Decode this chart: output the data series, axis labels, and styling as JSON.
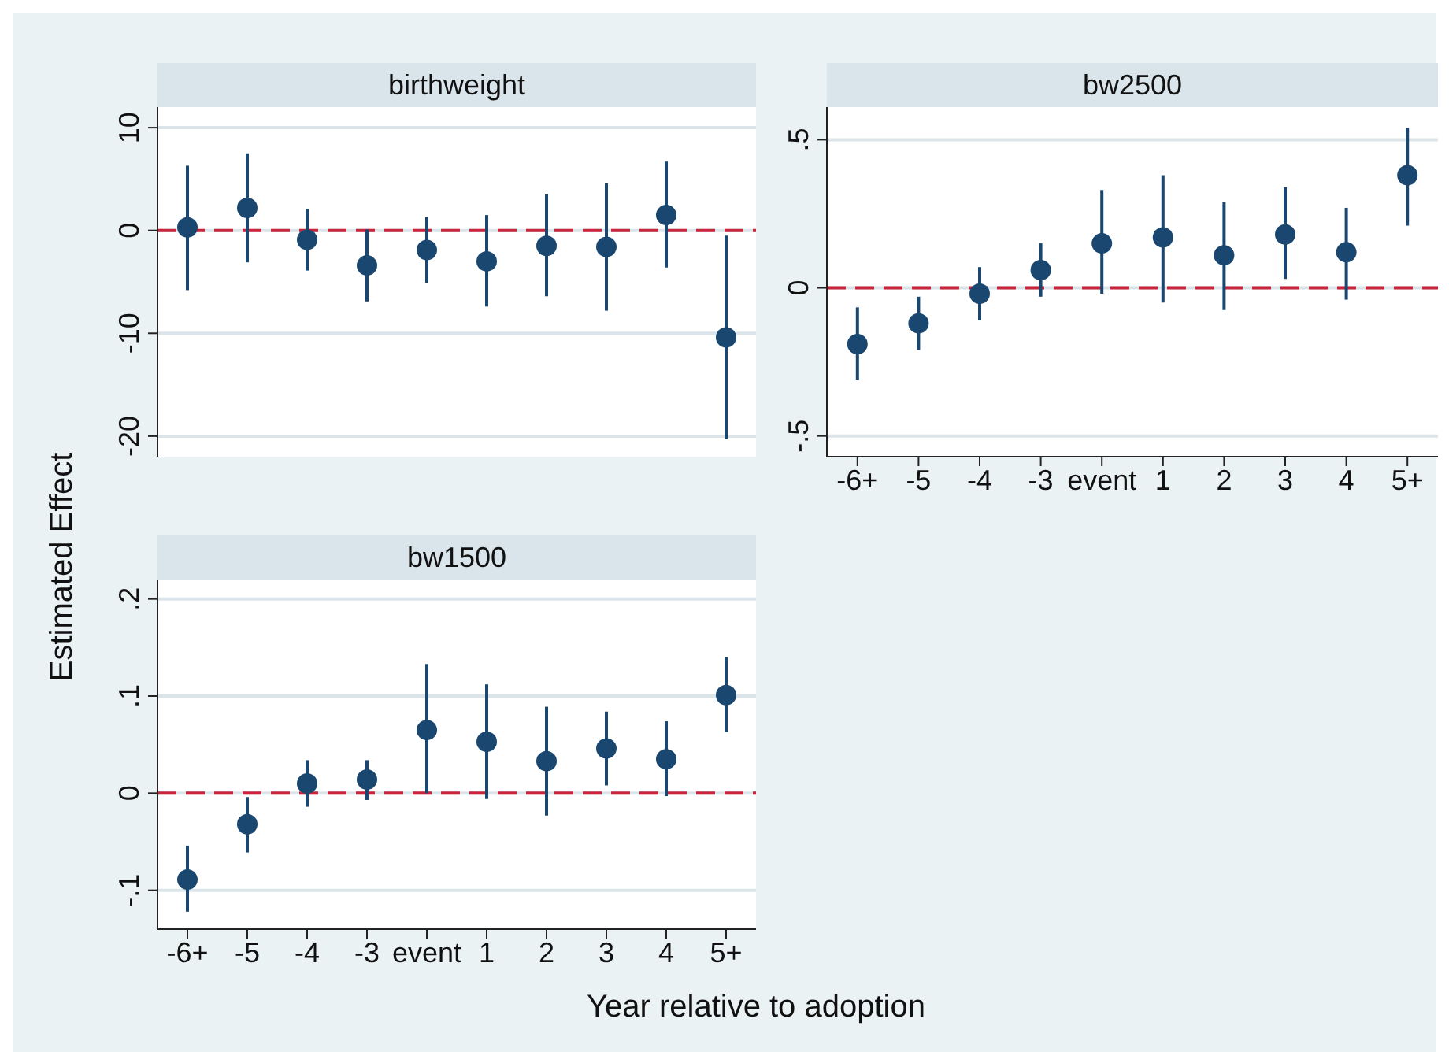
{
  "chart_data": [
    {
      "type": "scatter",
      "title": "birthweight",
      "ylabel": "Estimated Effect",
      "categories": [
        null,
        null,
        null,
        null,
        null,
        null,
        null,
        null,
        null,
        null
      ],
      "values": [
        0.3,
        2.2,
        -0.9,
        -3.4,
        -1.9,
        -3.0,
        -1.5,
        -1.6,
        1.5,
        -10.4
      ],
      "errors": [
        [
          -5.8,
          6.3
        ],
        [
          -3.1,
          7.5
        ],
        [
          -3.9,
          2.1
        ],
        [
          -6.9,
          0.1
        ],
        [
          -5.1,
          1.3
        ],
        [
          -7.4,
          1.5
        ],
        [
          -6.4,
          3.5
        ],
        [
          -7.8,
          4.6
        ],
        [
          -3.6,
          6.7
        ],
        [
          -20.3,
          -0.5
        ]
      ],
      "color": "#1a476f",
      "marker": "circle",
      "ylim": [
        -22,
        12
      ],
      "yticks": [
        -20,
        -10,
        0,
        10
      ],
      "grid": "y",
      "tick_labels": "y",
      "ref_lines": [
        {
          "axis": "y",
          "value": 0,
          "color": "#c8243c",
          "line_style": "dashed"
        }
      ]
    },
    {
      "type": "scatter",
      "title": "bw2500",
      "categories": [
        "-6+",
        "-5",
        "-4",
        "-3",
        "event",
        "1",
        "2",
        "3",
        "4",
        "5+"
      ],
      "values": [
        -0.19,
        -0.12,
        -0.02,
        0.06,
        0.15,
        0.17,
        0.11,
        0.18,
        0.12,
        0.38
      ],
      "errors": [
        [
          -0.31,
          -0.066
        ],
        [
          -0.21,
          -0.03
        ],
        [
          -0.11,
          0.07
        ],
        [
          -0.03,
          0.15
        ],
        [
          -0.02,
          0.33
        ],
        [
          -0.05,
          0.38
        ],
        [
          -0.075,
          0.29
        ],
        [
          0.03,
          0.34
        ],
        [
          -0.04,
          0.27
        ],
        [
          0.21,
          0.54
        ]
      ],
      "color": "#1a476f",
      "marker": "circle",
      "ylim": [
        -0.57,
        0.61
      ],
      "yticks": [
        {
          "value": -0.5,
          "label": "-.5"
        },
        0,
        {
          "value": 0.5,
          "label": ".5"
        }
      ],
      "grid": "y",
      "ref_lines": [
        {
          "axis": "y",
          "value": 0,
          "color": "#c8243c",
          "line_style": "dashed"
        }
      ]
    },
    {
      "type": "scatter",
      "title": "bw1500",
      "xlabel": "Year relative to adoption",
      "categories": [
        "-6+",
        "-5",
        "-4",
        "-3",
        "event",
        "1",
        "2",
        "3",
        "4",
        "5+"
      ],
      "values": [
        -0.089,
        -0.032,
        0.01,
        0.014,
        0.065,
        0.053,
        0.033,
        0.046,
        0.035,
        0.101
      ],
      "errors": [
        [
          -0.122,
          -0.054
        ],
        [
          -0.061,
          -0.004
        ],
        [
          -0.014,
          0.034
        ],
        [
          -0.007,
          0.034
        ],
        [
          0,
          0.133
        ],
        [
          -0.006,
          0.112
        ],
        [
          -0.023,
          0.089
        ],
        [
          0.008,
          0.084
        ],
        [
          -0.003,
          0.074
        ],
        [
          0.063,
          0.14
        ]
      ],
      "color": "#1a476f",
      "marker": "circle",
      "ylim": [
        -0.14,
        0.22
      ],
      "yticks": [
        {
          "value": -0.1,
          "label": "-.1"
        },
        0,
        {
          "value": 0.1,
          "label": ".1"
        },
        {
          "value": 0.2,
          "label": ".2"
        }
      ],
      "grid": "y",
      "ref_lines": [
        {
          "axis": "y",
          "value": 0,
          "color": "#c8243c",
          "line_style": "dashed"
        }
      ]
    }
  ]
}
